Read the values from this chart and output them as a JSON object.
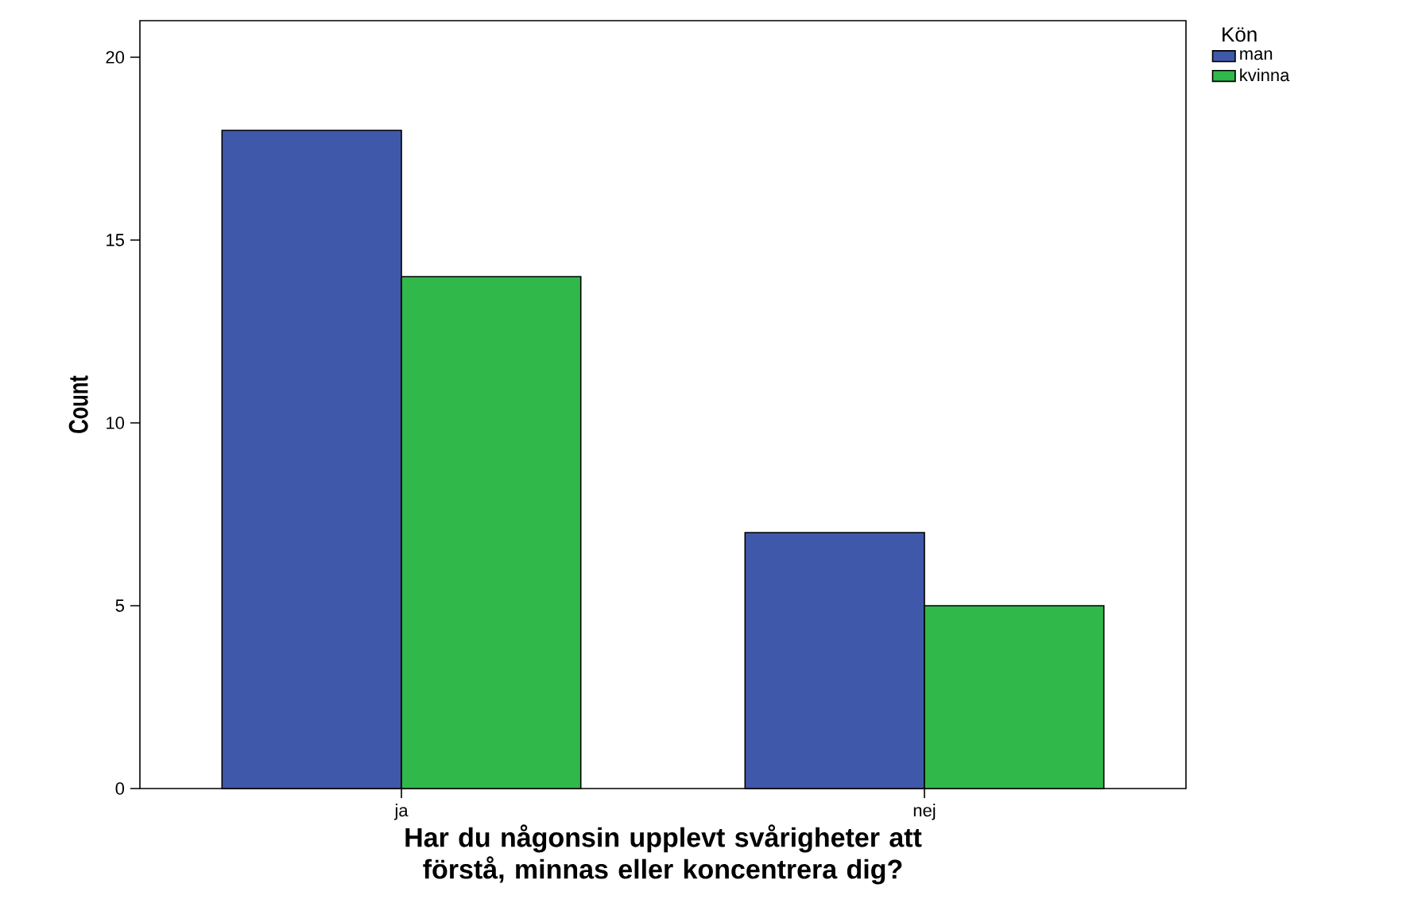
{
  "chart_data": {
    "type": "bar",
    "categories": [
      "ja",
      "nej"
    ],
    "series": [
      {
        "name": "man",
        "color": "#3f58a9",
        "values": [
          18,
          7
        ]
      },
      {
        "name": "kvinna",
        "color": "#30b84a",
        "values": [
          14,
          5
        ]
      }
    ],
    "ylim": [
      0,
      21
    ],
    "yticks": [
      0,
      5,
      10,
      15,
      20
    ],
    "xlabel": "Har du någonsin upplevt svårigheter att förstå, minnas eller koncentrera dig?",
    "ylabel": "Count",
    "legend_title": "Kön",
    "legend": "top right"
  }
}
